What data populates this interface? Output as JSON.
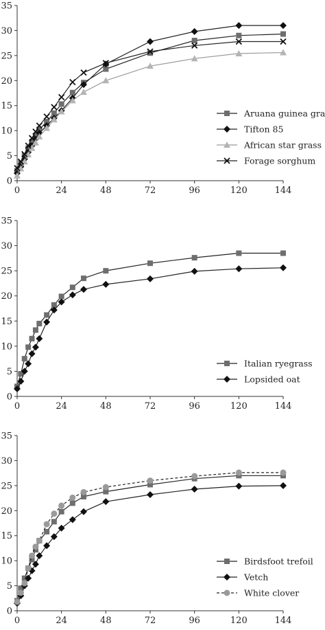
{
  "chart_data": [
    {
      "type": "line",
      "title": "",
      "xlabel": "",
      "ylabel": "",
      "xlim": [
        0,
        144
      ],
      "ylim": [
        0,
        35
      ],
      "xticks": [
        0,
        24,
        48,
        72,
        96,
        120,
        144
      ],
      "yticks": [
        0,
        5,
        10,
        15,
        20,
        25,
        30,
        35
      ],
      "xtick_labels": [
        "0",
        "24",
        "48",
        "72",
        "96",
        "120",
        "144"
      ],
      "ytick_labels": [
        "0",
        "5",
        "10",
        "15",
        "20",
        "25",
        "30",
        "35"
      ],
      "grid": false,
      "legend_position": "center-right",
      "x": [
        0,
        2,
        4,
        6,
        8,
        10,
        12,
        16,
        20,
        24,
        30,
        36,
        48,
        72,
        96,
        120,
        144
      ],
      "series": [
        {
          "name": "Aruana guinea grass",
          "marker": "square",
          "color": "#6e6e6e",
          "dashed": false,
          "values": [
            2.0,
            3.5,
            5.0,
            6.5,
            7.8,
            9.0,
            10.2,
            11.8,
            13.5,
            15.3,
            17.6,
            19.6,
            22.3,
            25.5,
            28.0,
            29.0,
            29.3
          ]
        },
        {
          "name": "Tifton 85",
          "marker": "diamond",
          "color": "#111111",
          "dashed": false,
          "values": [
            1.5,
            2.8,
            4.3,
            5.7,
            7.0,
            8.3,
            9.5,
            11.0,
            12.5,
            14.0,
            16.5,
            19.2,
            23.3,
            27.8,
            29.8,
            31.0,
            31.0
          ]
        },
        {
          "name": "African star grass",
          "marker": "triangle",
          "color": "#b4b4b4",
          "dashed": false,
          "values": [
            1.0,
            2.4,
            3.8,
            5.2,
            6.5,
            7.6,
            8.8,
            10.5,
            12.2,
            13.8,
            16.0,
            17.7,
            20.0,
            22.9,
            24.4,
            25.4,
            25.6
          ]
        },
        {
          "name": "Forage sorghum",
          "marker": "x",
          "color": "#111111",
          "dashed": false,
          "values": [
            2.5,
            3.8,
            5.3,
            7.0,
            8.5,
            9.8,
            11.0,
            12.8,
            14.7,
            16.7,
            19.7,
            21.6,
            23.5,
            25.8,
            27.0,
            27.8,
            27.8
          ]
        }
      ]
    },
    {
      "type": "line",
      "title": "",
      "xlabel": "",
      "ylabel": "",
      "xlim": [
        0,
        144
      ],
      "ylim": [
        0,
        35
      ],
      "xticks": [
        0,
        24,
        48,
        72,
        96,
        120,
        144
      ],
      "yticks": [
        0,
        5,
        10,
        15,
        20,
        25,
        30,
        35
      ],
      "xtick_labels": [
        "0",
        "24",
        "48",
        "72",
        "96",
        "120",
        "144"
      ],
      "ytick_labels": [
        "0",
        "5",
        "10",
        "15",
        "20",
        "25",
        "30",
        "35"
      ],
      "grid": false,
      "legend_position": "bottom-right",
      "x": [
        0,
        2,
        4,
        6,
        8,
        10,
        12,
        16,
        20,
        24,
        30,
        36,
        48,
        72,
        96,
        120,
        144
      ],
      "series": [
        {
          "name": "Italian ryegrass",
          "marker": "square",
          "color": "#6e6e6e",
          "dashed": false,
          "values": [
            2.0,
            4.5,
            7.5,
            9.8,
            11.5,
            13.2,
            14.5,
            16.2,
            18.2,
            19.9,
            21.7,
            23.5,
            25.0,
            26.5,
            27.6,
            28.5,
            28.5
          ]
        },
        {
          "name": "Lopsided oat",
          "marker": "diamond",
          "color": "#111111",
          "dashed": false,
          "values": [
            1.5,
            3.0,
            5.0,
            6.5,
            8.5,
            9.8,
            11.5,
            14.8,
            17.2,
            18.8,
            20.2,
            21.3,
            22.3,
            23.4,
            24.9,
            25.4,
            25.6
          ]
        }
      ]
    },
    {
      "type": "line",
      "title": "",
      "xlabel": "",
      "ylabel": "",
      "xlim": [
        0,
        144
      ],
      "ylim": [
        0,
        35
      ],
      "xticks": [
        0,
        24,
        48,
        72,
        96,
        120,
        144
      ],
      "yticks": [
        0,
        5,
        10,
        15,
        20,
        25,
        30,
        35
      ],
      "xtick_labels": [
        "0",
        "24",
        "48",
        "72",
        "96",
        "120",
        "144"
      ],
      "ytick_labels": [
        "0",
        "5",
        "10",
        "15",
        "20",
        "25",
        "30",
        "35"
      ],
      "grid": false,
      "legend_position": "bottom-right",
      "x": [
        0,
        2,
        4,
        6,
        8,
        10,
        12,
        16,
        20,
        24,
        30,
        36,
        48,
        72,
        96,
        120,
        144
      ],
      "series": [
        {
          "name": "Birdsfoot trefoil",
          "marker": "square",
          "color": "#6e6e6e",
          "dashed": false,
          "values": [
            2.0,
            4.5,
            6.5,
            8.5,
            10.2,
            12.2,
            14.0,
            15.8,
            17.8,
            19.8,
            21.5,
            22.8,
            23.8,
            25.2,
            26.4,
            27.0,
            27.0
          ]
        },
        {
          "name": "Vetch",
          "marker": "diamond",
          "color": "#111111",
          "dashed": false,
          "values": [
            1.5,
            3.0,
            5.0,
            6.5,
            8.0,
            9.3,
            11.0,
            13.0,
            14.8,
            16.5,
            18.2,
            19.8,
            21.8,
            23.2,
            24.3,
            24.9,
            25.0
          ]
        },
        {
          "name": "White clover",
          "marker": "circle",
          "color": "#9a9a9a",
          "dashed": true,
          "values": [
            1.8,
            3.6,
            5.5,
            8.5,
            11.0,
            12.8,
            14.0,
            17.3,
            19.4,
            21.0,
            22.6,
            23.7,
            24.7,
            26.0,
            26.9,
            27.6,
            27.6
          ]
        }
      ]
    }
  ]
}
